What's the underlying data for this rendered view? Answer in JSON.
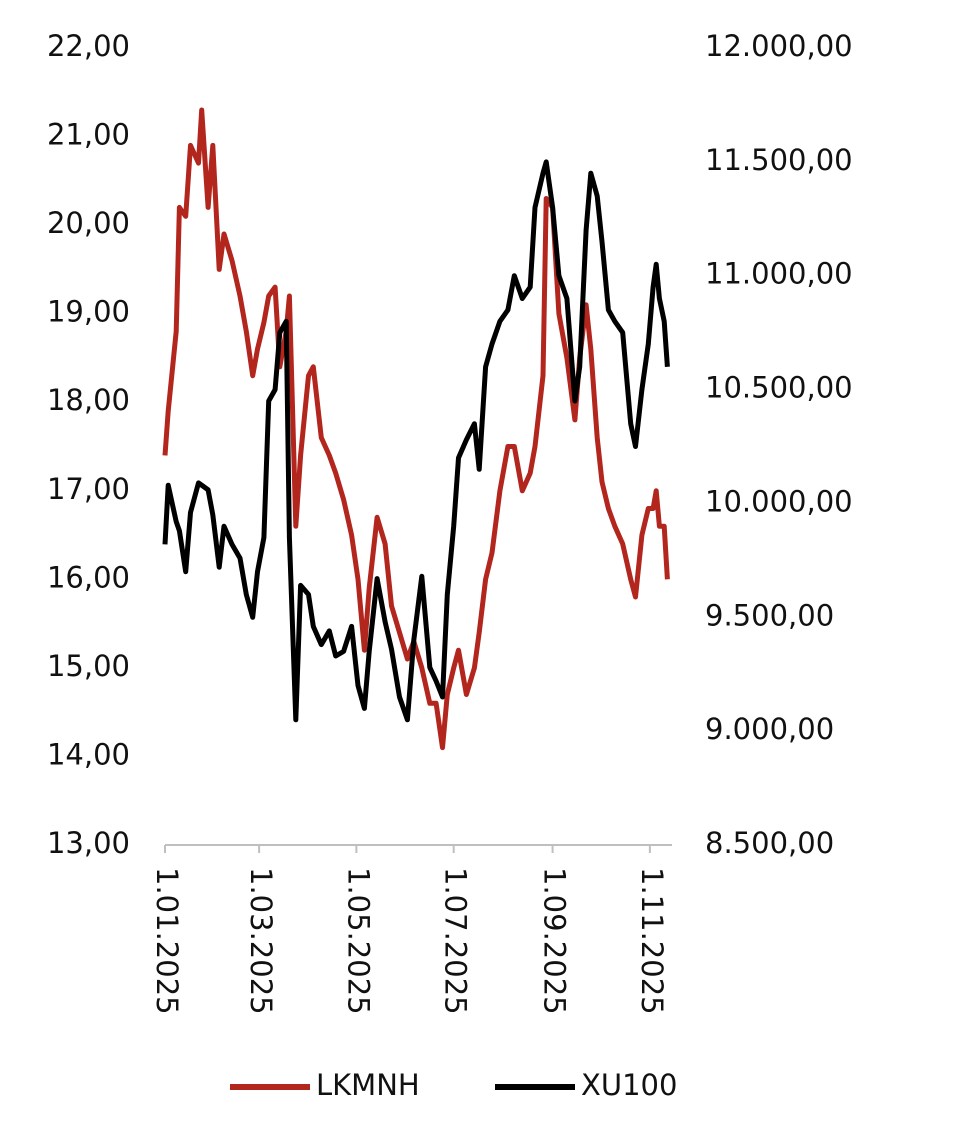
{
  "chart_data": {
    "type": "line",
    "x": [
      "2025-01-01",
      "2025-01-03",
      "2025-01-08",
      "2025-01-10",
      "2025-01-14",
      "2025-01-17",
      "2025-01-22",
      "2025-01-24",
      "2025-01-28",
      "2025-01-31",
      "2025-02-04",
      "2025-02-07",
      "2025-02-12",
      "2025-02-17",
      "2025-02-21",
      "2025-02-25",
      "2025-02-28",
      "2025-03-04",
      "2025-03-07",
      "2025-03-11",
      "2025-03-14",
      "2025-03-18",
      "2025-03-20",
      "2025-03-24",
      "2025-03-27",
      "2025-04-01",
      "2025-04-04",
      "2025-04-09",
      "2025-04-14",
      "2025-04-18",
      "2025-04-23",
      "2025-04-28",
      "2025-05-02",
      "2025-05-06",
      "2025-05-09",
      "2025-05-14",
      "2025-05-19",
      "2025-05-23",
      "2025-05-28",
      "2025-06-02",
      "2025-06-06",
      "2025-06-11",
      "2025-06-16",
      "2025-06-20",
      "2025-06-24",
      "2025-06-27",
      "2025-07-01",
      "2025-07-04",
      "2025-07-09",
      "2025-07-14",
      "2025-07-17",
      "2025-07-21",
      "2025-07-25",
      "2025-07-30",
      "2025-08-04",
      "2025-08-08",
      "2025-08-13",
      "2025-08-18",
      "2025-08-21",
      "2025-08-26",
      "2025-08-28",
      "2025-09-01",
      "2025-09-05",
      "2025-09-10",
      "2025-09-15",
      "2025-09-18",
      "2025-09-22",
      "2025-09-25",
      "2025-09-29",
      "2025-10-02",
      "2025-10-06",
      "2025-10-10",
      "2025-10-15",
      "2025-10-20",
      "2025-10-23",
      "2025-10-27",
      "2025-10-31",
      "2025-11-03",
      "2025-11-05",
      "2025-11-07",
      "2025-11-10",
      "2025-11-12"
    ],
    "series": [
      {
        "name": "LKMNH",
        "color": "#b3261e",
        "values": [
          17.4,
          17.9,
          18.8,
          20.2,
          20.1,
          20.9,
          20.7,
          21.3,
          20.2,
          20.9,
          19.5,
          19.9,
          19.6,
          19.2,
          18.8,
          18.3,
          18.6,
          18.9,
          19.2,
          19.3,
          18.4,
          18.8,
          19.2,
          16.6,
          17.4,
          18.3,
          18.4,
          17.6,
          17.4,
          17.2,
          16.9,
          16.5,
          16.0,
          15.2,
          15.9,
          16.7,
          16.4,
          15.7,
          15.4,
          15.1,
          15.3,
          15.0,
          14.6,
          14.6,
          14.1,
          14.7,
          15.0,
          15.2,
          14.7,
          15.0,
          15.4,
          16.0,
          16.3,
          17.0,
          17.5,
          17.5,
          17.0,
          17.2,
          17.5,
          18.3,
          20.3,
          20.2,
          19.0,
          18.5,
          17.8,
          18.5,
          19.1,
          18.6,
          17.6,
          17.1,
          16.8,
          16.6,
          16.4,
          16.0,
          15.8,
          16.5,
          16.8,
          16.8,
          17.0,
          16.6,
          16.6,
          16.0
        ]
      },
      {
        "name": "XU100",
        "color": "#000000",
        "axis": "y2",
        "values": [
          9820,
          10080,
          9920,
          9880,
          9700,
          9960,
          10090,
          10080,
          10060,
          9950,
          9720,
          9900,
          9820,
          9760,
          9600,
          9500,
          9700,
          9850,
          10450,
          10500,
          10750,
          10800,
          9850,
          9050,
          9640,
          9600,
          9460,
          9380,
          9440,
          9330,
          9350,
          9460,
          9200,
          9100,
          9350,
          9670,
          9480,
          9360,
          9150,
          9050,
          9400,
          9680,
          9280,
          9220,
          9150,
          9600,
          9900,
          10200,
          10280,
          10350,
          10150,
          10600,
          10700,
          10800,
          10850,
          11000,
          10900,
          10950,
          11300,
          11450,
          11500,
          11300,
          11000,
          10900,
          10450,
          10600,
          11200,
          11450,
          11350,
          11150,
          10850,
          10800,
          10750,
          10350,
          10250,
          10500,
          10700,
          10950,
          11050,
          10900,
          10800,
          10600
        ]
      }
    ],
    "xlim": [
      "2025-01-01",
      "2025-11-13"
    ],
    "xticks": [
      {
        "value": "2025-01-01",
        "label": "1.01.2025"
      },
      {
        "value": "2025-03-01",
        "label": "1.03.2025"
      },
      {
        "value": "2025-05-01",
        "label": "1.05.2025"
      },
      {
        "value": "2025-07-01",
        "label": "1.07.2025"
      },
      {
        "value": "2025-09-01",
        "label": "1.09.2025"
      },
      {
        "value": "2025-11-01",
        "label": "1.11.2025"
      }
    ],
    "ylim": [
      13,
      22
    ],
    "yticks": [
      {
        "value": 13,
        "label": "13,00"
      },
      {
        "value": 14,
        "label": "14,00"
      },
      {
        "value": 15,
        "label": "15,00"
      },
      {
        "value": 16,
        "label": "16,00"
      },
      {
        "value": 17,
        "label": "17,00"
      },
      {
        "value": 18,
        "label": "18,00"
      },
      {
        "value": 19,
        "label": "19,00"
      },
      {
        "value": 20,
        "label": "20,00"
      },
      {
        "value": 21,
        "label": "21,00"
      },
      {
        "value": 22,
        "label": "22,00"
      }
    ],
    "y2lim": [
      8500,
      12000
    ],
    "y2ticks": [
      {
        "value": 8500,
        "label": "8.500,00"
      },
      {
        "value": 9000,
        "label": "9.000,00"
      },
      {
        "value": 9500,
        "label": "9.500,00"
      },
      {
        "value": 10000,
        "label": "10.000,00"
      },
      {
        "value": 10500,
        "label": "10.500,00"
      },
      {
        "value": 11000,
        "label": "11.000,00"
      },
      {
        "value": 11500,
        "label": "11.500,00"
      },
      {
        "value": 12000,
        "label": "12.000,00"
      }
    ],
    "grid": false,
    "legend": "bottom"
  }
}
